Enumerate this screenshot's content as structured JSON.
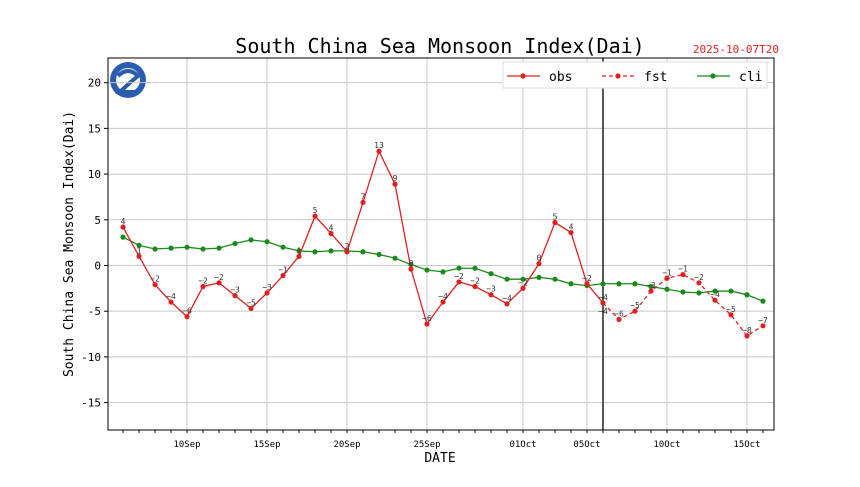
{
  "chart_data": {
    "type": "line",
    "title": "South China Sea Monsoon Index(Dai)",
    "timestamp": "2025-10-07T20",
    "xlabel": "DATE",
    "ylabel": "South China Sea Monsoon Index(Dai)",
    "ylim": [
      -18,
      22.7
    ],
    "yticks": [
      20,
      15,
      10,
      5,
      0,
      -5,
      -10,
      -15
    ],
    "xticks": [
      {
        "day": 4,
        "label": "10Sep"
      },
      {
        "day": 9,
        "label": "15Sep"
      },
      {
        "day": 14,
        "label": "20Sep"
      },
      {
        "day": 19,
        "label": "25Sep"
      },
      {
        "day": 25,
        "label": "01Oct"
      },
      {
        "day": 29,
        "label": "05Oct"
      },
      {
        "day": 34,
        "label": "10Oct"
      },
      {
        "day": 39,
        "label": "15Oct"
      }
    ],
    "x_start": "7Sep",
    "grid": true,
    "legend": "top-right",
    "forecast_start_day": 30,
    "series": [
      {
        "name": "obs",
        "color": "#e02020",
        "style": "solid",
        "start_day": 0,
        "values": [
          4.2,
          1.0,
          -2.1,
          -4.0,
          -5.6,
          -2.3,
          -1.9,
          -3.3,
          -4.7,
          -3.0,
          -1.1,
          1.0,
          5.4,
          3.5,
          1.5,
          6.9,
          12.5,
          8.9,
          -0.4,
          -6.4,
          -4.0,
          -1.8,
          -2.3,
          -3.2,
          -4.2,
          -2.5,
          0.2,
          4.7,
          3.6,
          -2.0,
          -4.1
        ]
      },
      {
        "name": "fst",
        "color": "#e02020",
        "style": "dashed",
        "start_day": 30,
        "values": [
          -4.1,
          -5.9,
          -5.0,
          -2.8,
          -1.4,
          -1.0,
          -1.9,
          -3.8,
          -5.4,
          -7.7,
          -6.6
        ]
      },
      {
        "name": "cli",
        "color": "#1a8a1a",
        "style": "solid",
        "start_day": 0,
        "values": [
          3.1,
          2.2,
          1.8,
          1.9,
          2.0,
          1.8,
          1.9,
          2.4,
          2.8,
          2.6,
          2.0,
          1.6,
          1.5,
          1.6,
          1.6,
          1.5,
          1.2,
          0.8,
          0.1,
          -0.5,
          -0.7,
          -0.3,
          -0.3,
          -0.9,
          -1.5,
          -1.5,
          -1.3,
          -1.5,
          -2.0,
          -2.2,
          -2.0,
          -2.0,
          -2.0,
          -2.3,
          -2.6,
          -2.9,
          -3.0,
          -2.8,
          -2.8,
          -3.2,
          -3.9
        ]
      }
    ]
  }
}
